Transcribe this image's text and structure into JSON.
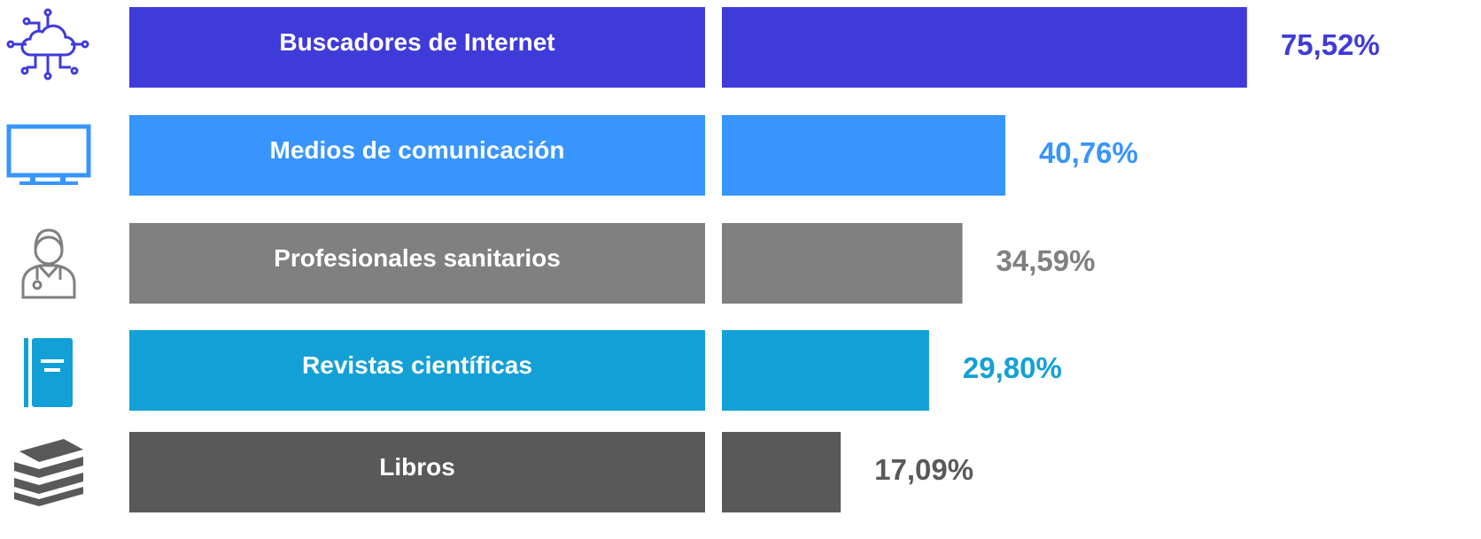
{
  "chart_data": {
    "type": "bar",
    "orientation": "horizontal",
    "categories": [
      "Buscadores de Internet",
      "Medios de comunicación",
      "Profesionales sanitarios",
      "Revistas científicas",
      "Libros"
    ],
    "values": [
      75.52,
      40.76,
      34.59,
      29.8,
      17.09
    ],
    "value_labels": [
      "75,52%",
      "40,76%",
      "34,59%",
      "29,80%",
      "17,09%"
    ],
    "colors": [
      "#3f3bd9",
      "#3895fd",
      "#808080",
      "#13a0d6",
      "#595959"
    ],
    "xlim": [
      0,
      100
    ]
  }
}
